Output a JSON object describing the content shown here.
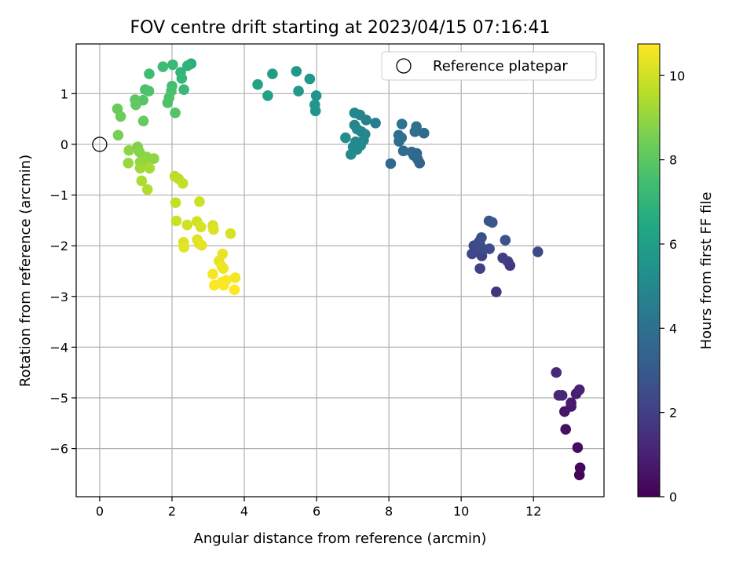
{
  "chart_data": {
    "type": "scatter",
    "title": "FOV centre drift starting at 2023/04/15 07:16:41",
    "xlabel": "Angular distance from reference (arcmin)",
    "ylabel": "Rotation from reference (arcmin)",
    "xlim": [
      -0.65,
      13.95
    ],
    "ylim": [
      -6.95,
      1.98
    ],
    "xticks": [
      0,
      2,
      4,
      6,
      8,
      10,
      12
    ],
    "yticks": [
      -6,
      -5,
      -4,
      -3,
      -2,
      -1,
      0,
      1
    ],
    "grid": true,
    "legend": {
      "placement": "top-right",
      "entries": [
        "Reference platepar"
      ]
    },
    "colorbar": {
      "label": "Hours from first FF file",
      "colormap": "viridis",
      "min": 0,
      "max": 10.75,
      "ticks": [
        0,
        2,
        4,
        6,
        8,
        10
      ]
    },
    "reference_point": {
      "x": 0,
      "y": 0
    },
    "points": [
      {
        "x": 13.27,
        "y": -6.52,
        "c": 0.1
      },
      {
        "x": 13.29,
        "y": -6.38,
        "c": 0.2
      },
      {
        "x": 13.22,
        "y": -5.98,
        "c": 0.3
      },
      {
        "x": 12.89,
        "y": -5.62,
        "c": 0.5
      },
      {
        "x": 12.86,
        "y": -5.27,
        "c": 0.6
      },
      {
        "x": 13.04,
        "y": -5.17,
        "c": 0.7
      },
      {
        "x": 13.04,
        "y": -5.1,
        "c": 0.8
      },
      {
        "x": 13.18,
        "y": -4.92,
        "c": 0.9
      },
      {
        "x": 13.27,
        "y": -4.84,
        "c": 1.0
      },
      {
        "x": 12.7,
        "y": -4.95,
        "c": 1.1
      },
      {
        "x": 12.79,
        "y": -4.95,
        "c": 1.2
      },
      {
        "x": 12.63,
        "y": -4.5,
        "c": 1.3
      },
      {
        "x": 10.97,
        "y": -2.91,
        "c": 1.6
      },
      {
        "x": 11.35,
        "y": -2.39,
        "c": 1.7
      },
      {
        "x": 11.29,
        "y": -2.31,
        "c": 1.8
      },
      {
        "x": 11.15,
        "y": -2.24,
        "c": 1.9
      },
      {
        "x": 10.52,
        "y": -2.45,
        "c": 2.0
      },
      {
        "x": 10.57,
        "y": -2.2,
        "c": 2.1
      },
      {
        "x": 10.3,
        "y": -2.16,
        "c": 2.2
      },
      {
        "x": 10.4,
        "y": -2.08,
        "c": 2.3
      },
      {
        "x": 10.35,
        "y": -2.0,
        "c": 2.35
      },
      {
        "x": 10.52,
        "y": -1.98,
        "c": 2.4
      },
      {
        "x": 10.5,
        "y": -1.92,
        "c": 2.45
      },
      {
        "x": 10.57,
        "y": -2.05,
        "c": 2.5
      },
      {
        "x": 10.78,
        "y": -2.06,
        "c": 2.55
      },
      {
        "x": 10.56,
        "y": -1.84,
        "c": 2.6
      },
      {
        "x": 11.22,
        "y": -1.89,
        "c": 2.7
      },
      {
        "x": 12.12,
        "y": -2.12,
        "c": 2.3
      },
      {
        "x": 10.77,
        "y": -1.51,
        "c": 2.8
      },
      {
        "x": 10.86,
        "y": -1.54,
        "c": 2.9
      },
      {
        "x": 8.85,
        "y": -0.37,
        "c": 3.4
      },
      {
        "x": 8.8,
        "y": -0.3,
        "c": 3.5
      },
      {
        "x": 8.69,
        "y": -0.22,
        "c": 3.6
      },
      {
        "x": 8.63,
        "y": -0.15,
        "c": 3.7
      },
      {
        "x": 8.77,
        "y": -0.18,
        "c": 3.6
      },
      {
        "x": 8.05,
        "y": -0.38,
        "c": 3.7
      },
      {
        "x": 8.4,
        "y": -0.13,
        "c": 3.8
      },
      {
        "x": 8.28,
        "y": 0.06,
        "c": 3.8
      },
      {
        "x": 8.27,
        "y": 0.18,
        "c": 3.9
      },
      {
        "x": 8.35,
        "y": 0.13,
        "c": 3.95
      },
      {
        "x": 8.72,
        "y": 0.25,
        "c": 3.85
      },
      {
        "x": 8.97,
        "y": 0.22,
        "c": 3.75
      },
      {
        "x": 8.76,
        "y": 0.35,
        "c": 4.0
      },
      {
        "x": 8.36,
        "y": 0.4,
        "c": 4.05
      },
      {
        "x": 7.63,
        "y": 0.42,
        "c": 4.5
      },
      {
        "x": 7.37,
        "y": 0.48,
        "c": 4.7
      },
      {
        "x": 7.2,
        "y": 0.58,
        "c": 4.8
      },
      {
        "x": 7.05,
        "y": 0.62,
        "c": 4.9
      },
      {
        "x": 7.05,
        "y": 0.38,
        "c": 4.95
      },
      {
        "x": 7.12,
        "y": 0.3,
        "c": 5.0
      },
      {
        "x": 7.24,
        "y": 0.25,
        "c": 5.0
      },
      {
        "x": 7.34,
        "y": 0.2,
        "c": 4.8
      },
      {
        "x": 7.08,
        "y": 0.05,
        "c": 5.05
      },
      {
        "x": 7.3,
        "y": 0.08,
        "c": 4.9
      },
      {
        "x": 7.22,
        "y": -0.02,
        "c": 5.1
      },
      {
        "x": 6.8,
        "y": 0.13,
        "c": 5.2
      },
      {
        "x": 7.12,
        "y": -0.1,
        "c": 5.0
      },
      {
        "x": 6.95,
        "y": -0.2,
        "c": 5.1
      },
      {
        "x": 7.01,
        "y": -0.05,
        "c": 5.1
      },
      {
        "x": 5.97,
        "y": 0.66,
        "c": 5.5
      },
      {
        "x": 5.95,
        "y": 0.78,
        "c": 5.6
      },
      {
        "x": 5.99,
        "y": 0.96,
        "c": 5.5
      },
      {
        "x": 5.81,
        "y": 1.29,
        "c": 5.7
      },
      {
        "x": 5.5,
        "y": 1.05,
        "c": 5.8
      },
      {
        "x": 5.44,
        "y": 1.44,
        "c": 5.7
      },
      {
        "x": 4.78,
        "y": 1.39,
        "c": 6.0
      },
      {
        "x": 4.65,
        "y": 0.96,
        "c": 6.1
      },
      {
        "x": 4.37,
        "y": 1.18,
        "c": 6.2
      },
      {
        "x": 2.53,
        "y": 1.59,
        "c": 6.8
      },
      {
        "x": 2.43,
        "y": 1.55,
        "c": 6.9
      },
      {
        "x": 2.24,
        "y": 1.42,
        "c": 7.0
      },
      {
        "x": 2.27,
        "y": 1.3,
        "c": 7.1
      },
      {
        "x": 2.33,
        "y": 1.08,
        "c": 7.2
      },
      {
        "x": 2.02,
        "y": 1.57,
        "c": 7.2
      },
      {
        "x": 1.75,
        "y": 1.53,
        "c": 7.3
      },
      {
        "x": 1.37,
        "y": 1.39,
        "c": 7.4
      },
      {
        "x": 2.0,
        "y": 1.15,
        "c": 7.5
      },
      {
        "x": 1.98,
        "y": 1.05,
        "c": 7.6
      },
      {
        "x": 1.92,
        "y": 0.92,
        "c": 7.7
      },
      {
        "x": 1.88,
        "y": 0.82,
        "c": 7.7
      },
      {
        "x": 2.09,
        "y": 0.62,
        "c": 7.8
      },
      {
        "x": 1.26,
        "y": 1.08,
        "c": 7.6
      },
      {
        "x": 1.36,
        "y": 1.05,
        "c": 7.7
      },
      {
        "x": 1.2,
        "y": 0.87,
        "c": 7.9
      },
      {
        "x": 0.98,
        "y": 0.88,
        "c": 8.0
      },
      {
        "x": 1.0,
        "y": 0.78,
        "c": 8.1
      },
      {
        "x": 0.49,
        "y": 0.7,
        "c": 8.2
      },
      {
        "x": 0.58,
        "y": 0.55,
        "c": 8.3
      },
      {
        "x": 1.21,
        "y": 0.46,
        "c": 8.2
      },
      {
        "x": 0.51,
        "y": 0.18,
        "c": 8.5
      },
      {
        "x": 0.81,
        "y": -0.12,
        "c": 8.9
      },
      {
        "x": 1.05,
        "y": -0.05,
        "c": 8.7
      },
      {
        "x": 1.1,
        "y": -0.15,
        "c": 8.8
      },
      {
        "x": 1.3,
        "y": -0.25,
        "c": 8.9
      },
      {
        "x": 1.12,
        "y": -0.35,
        "c": 9.0
      },
      {
        "x": 1.26,
        "y": -0.38,
        "c": 9.0
      },
      {
        "x": 1.5,
        "y": -0.28,
        "c": 8.9
      },
      {
        "x": 0.79,
        "y": -0.37,
        "c": 9.1
      },
      {
        "x": 1.12,
        "y": -0.47,
        "c": 9.2
      },
      {
        "x": 1.38,
        "y": -0.47,
        "c": 9.3
      },
      {
        "x": 1.16,
        "y": -0.72,
        "c": 9.4
      },
      {
        "x": 1.32,
        "y": -0.89,
        "c": 9.5
      },
      {
        "x": 2.08,
        "y": -0.63,
        "c": 9.6
      },
      {
        "x": 2.18,
        "y": -0.68,
        "c": 9.7
      },
      {
        "x": 2.3,
        "y": -0.77,
        "c": 9.8
      },
      {
        "x": 2.76,
        "y": -1.13,
        "c": 9.9
      },
      {
        "x": 2.1,
        "y": -1.15,
        "c": 9.8
      },
      {
        "x": 2.12,
        "y": -1.51,
        "c": 9.9
      },
      {
        "x": 2.42,
        "y": -1.59,
        "c": 10.0
      },
      {
        "x": 2.69,
        "y": -1.52,
        "c": 10.0
      },
      {
        "x": 2.8,
        "y": -1.63,
        "c": 10.1
      },
      {
        "x": 3.13,
        "y": -1.6,
        "c": 10.1
      },
      {
        "x": 3.15,
        "y": -1.68,
        "c": 10.2
      },
      {
        "x": 3.62,
        "y": -1.76,
        "c": 10.1
      },
      {
        "x": 2.32,
        "y": -1.93,
        "c": 10.2
      },
      {
        "x": 2.33,
        "y": -2.03,
        "c": 10.3
      },
      {
        "x": 2.7,
        "y": -1.88,
        "c": 10.2
      },
      {
        "x": 2.82,
        "y": -1.99,
        "c": 10.3
      },
      {
        "x": 2.75,
        "y": -1.96,
        "c": 10.3
      },
      {
        "x": 3.4,
        "y": -2.16,
        "c": 10.4
      },
      {
        "x": 3.3,
        "y": -2.3,
        "c": 10.4
      },
      {
        "x": 3.38,
        "y": -2.41,
        "c": 10.5
      },
      {
        "x": 3.42,
        "y": -2.45,
        "c": 10.5
      },
      {
        "x": 3.13,
        "y": -2.56,
        "c": 10.6
      },
      {
        "x": 3.75,
        "y": -2.63,
        "c": 10.6
      },
      {
        "x": 3.5,
        "y": -2.68,
        "c": 10.7
      },
      {
        "x": 3.38,
        "y": -2.72,
        "c": 10.7
      },
      {
        "x": 3.17,
        "y": -2.78,
        "c": 10.7
      },
      {
        "x": 3.43,
        "y": -2.78,
        "c": 10.7
      },
      {
        "x": 3.73,
        "y": -2.87,
        "c": 10.75
      }
    ]
  }
}
